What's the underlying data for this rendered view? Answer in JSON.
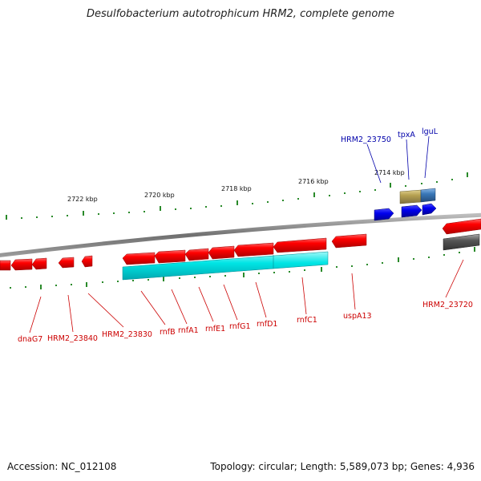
{
  "title": "Desulfobacterium autotrophicum HRM2, complete genome",
  "footer": {
    "accession": "Accession: NC_012108",
    "summary": "Topology: circular; Length: 5,589,073 bp; Genes: 4,936"
  },
  "colors": {
    "forward_gene": "#ff0000",
    "reverse_gene": "#ff0000",
    "cds_region": "#00e5e5",
    "blue_gene": "#0000dd",
    "olive_gene": "#b5a050",
    "steelblue_gene": "#3a78b8",
    "gray_gene": "#555555",
    "backbone": "#7a7a7a",
    "tick": "#2a8a2a",
    "blue_label": "#0000aa",
    "red_label": "#cc0000"
  },
  "scale_labels": [
    {
      "id": "kbp-2722",
      "text": "2722 kbp"
    },
    {
      "id": "kbp-2720",
      "text": "2720 kbp"
    },
    {
      "id": "kbp-2718",
      "text": "2718 kbp"
    },
    {
      "id": "kbp-2716",
      "text": "2716 kbp"
    },
    {
      "id": "kbp-2714",
      "text": "2714 kbp"
    }
  ],
  "upper_labels": [
    {
      "id": "HRM2_23750",
      "text": "HRM2_23750"
    },
    {
      "id": "tpxA",
      "text": "tpxA"
    },
    {
      "id": "lguL",
      "text": "lguL"
    }
  ],
  "lower_labels": [
    {
      "id": "dnaG7",
      "text": "dnaG7"
    },
    {
      "id": "HRM2_23840",
      "text": "HRM2_23840"
    },
    {
      "id": "HRM2_23830",
      "text": "HRM2_23830"
    },
    {
      "id": "rnfB",
      "text": "rnfB"
    },
    {
      "id": "rnfA1",
      "text": "rnfA1"
    },
    {
      "id": "rnfE1",
      "text": "rnfE1"
    },
    {
      "id": "rnfG1",
      "text": "rnfG1"
    },
    {
      "id": "rnfD1",
      "text": "rnfD1"
    },
    {
      "id": "rnfC1",
      "text": "rnfC1"
    },
    {
      "id": "uspA13",
      "text": "uspA13"
    },
    {
      "id": "HRM2_23720",
      "text": "HRM2_23720"
    }
  ]
}
